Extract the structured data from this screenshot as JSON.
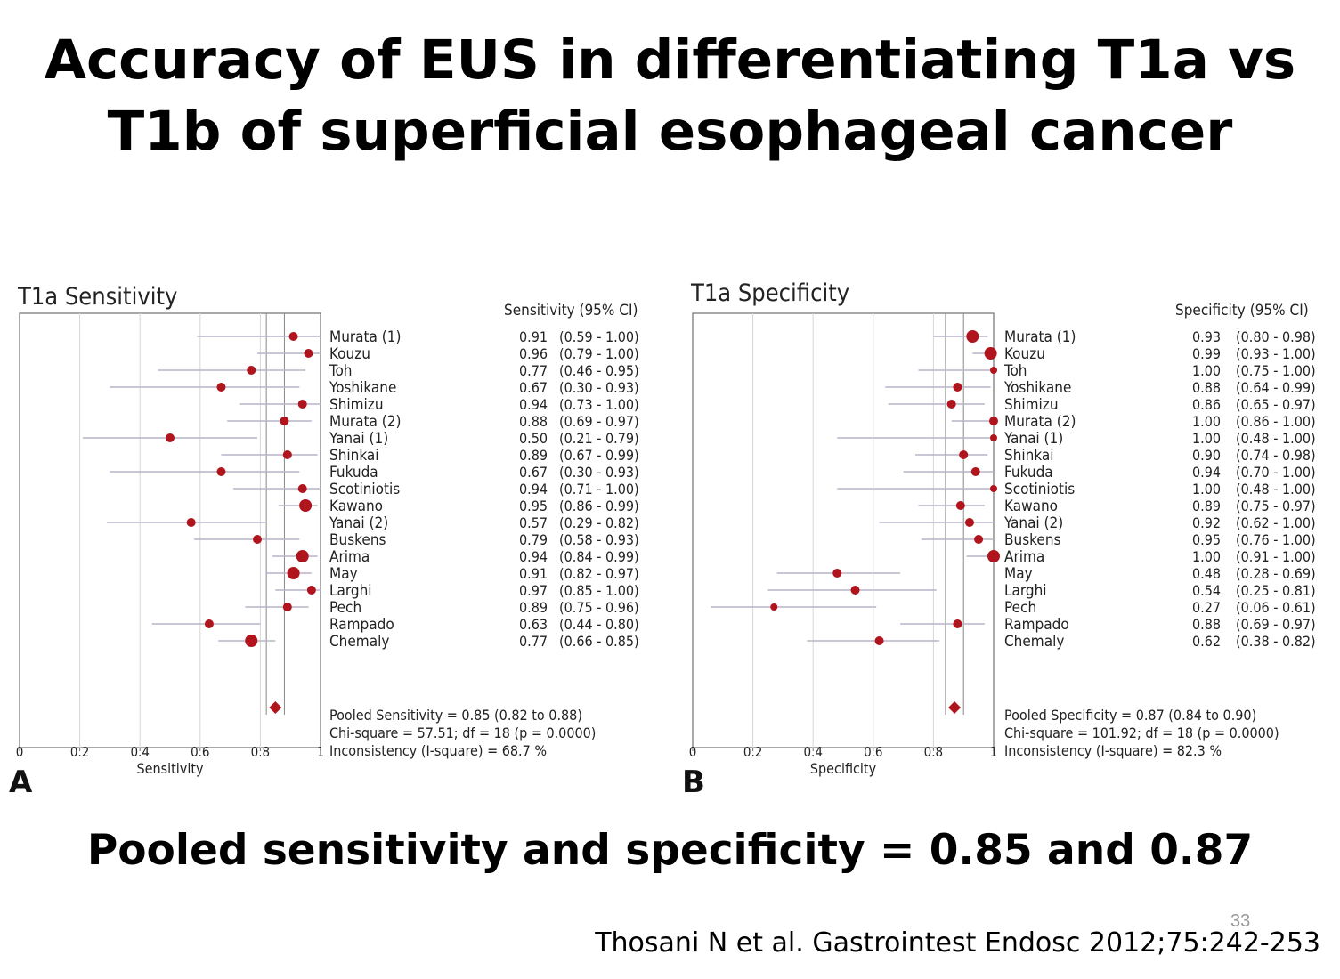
{
  "slide": {
    "title_line1": "Accuracy of EUS in differentiating T1a vs",
    "title_line2": "T1b of superficial esophageal cancer",
    "summary": "Pooled sensitivity and specificity = 0.85 and 0.87",
    "citation": "Thosani N et al. Gastrointest Endosc 2012;75:242-253",
    "page_number": "33"
  },
  "colors": {
    "point": "#b0141d",
    "ci_line": "#b8b4c8",
    "grid": "#d6d6d6",
    "frame": "#707070"
  },
  "chart_data": [
    {
      "type": "forest",
      "panel_label": "A",
      "title": "T1a Sensitivity",
      "column_header": "Sensitivity (95% CI)",
      "xlabel": "Sensitivity",
      "xlim": [
        0,
        1
      ],
      "x_ticks": [
        "0",
        "0.2",
        "0.4",
        "0.6",
        "0.8",
        "1"
      ],
      "studies": [
        {
          "name": "Murata (1)",
          "estimate": 0.91,
          "lower": 0.59,
          "upper": 1.0,
          "estimate_text": "0.91",
          "ci_text": "(0.59 - 1.00)",
          "weight": 2
        },
        {
          "name": "Kouzu",
          "estimate": 0.96,
          "lower": 0.79,
          "upper": 1.0,
          "estimate_text": "0.96",
          "ci_text": "(0.79 - 1.00)",
          "weight": 2
        },
        {
          "name": "Toh",
          "estimate": 0.77,
          "lower": 0.46,
          "upper": 0.95,
          "estimate_text": "0.77",
          "ci_text": "(0.46 - 0.95)",
          "weight": 2
        },
        {
          "name": "Yoshikane",
          "estimate": 0.67,
          "lower": 0.3,
          "upper": 0.93,
          "estimate_text": "0.67",
          "ci_text": "(0.30 - 0.93)",
          "weight": 2
        },
        {
          "name": "Shimizu",
          "estimate": 0.94,
          "lower": 0.73,
          "upper": 1.0,
          "estimate_text": "0.94",
          "ci_text": "(0.73 - 1.00)",
          "weight": 2
        },
        {
          "name": "Murata (2)",
          "estimate": 0.88,
          "lower": 0.69,
          "upper": 0.97,
          "estimate_text": "0.88",
          "ci_text": "(0.69 - 0.97)",
          "weight": 2
        },
        {
          "name": "Yanai (1)",
          "estimate": 0.5,
          "lower": 0.21,
          "upper": 0.79,
          "estimate_text": "0.50",
          "ci_text": "(0.21 - 0.79)",
          "weight": 2
        },
        {
          "name": "Shinkai",
          "estimate": 0.89,
          "lower": 0.67,
          "upper": 0.99,
          "estimate_text": "0.89",
          "ci_text": "(0.67 - 0.99)",
          "weight": 2
        },
        {
          "name": "Fukuda",
          "estimate": 0.67,
          "lower": 0.3,
          "upper": 0.93,
          "estimate_text": "0.67",
          "ci_text": "(0.30 - 0.93)",
          "weight": 2
        },
        {
          "name": "Scotiniotis",
          "estimate": 0.94,
          "lower": 0.71,
          "upper": 1.0,
          "estimate_text": "0.94",
          "ci_text": "(0.71 - 1.00)",
          "weight": 2
        },
        {
          "name": "Kawano",
          "estimate": 0.95,
          "lower": 0.86,
          "upper": 0.99,
          "estimate_text": "0.95",
          "ci_text": "(0.86 - 0.99)",
          "weight": 3
        },
        {
          "name": "Yanai (2)",
          "estimate": 0.57,
          "lower": 0.29,
          "upper": 0.82,
          "estimate_text": "0.57",
          "ci_text": "(0.29 - 0.82)",
          "weight": 2
        },
        {
          "name": "Buskens",
          "estimate": 0.79,
          "lower": 0.58,
          "upper": 0.93,
          "estimate_text": "0.79",
          "ci_text": "(0.58 - 0.93)",
          "weight": 2
        },
        {
          "name": "Arima",
          "estimate": 0.94,
          "lower": 0.84,
          "upper": 0.99,
          "estimate_text": "0.94",
          "ci_text": "(0.84 - 0.99)",
          "weight": 3
        },
        {
          "name": "May",
          "estimate": 0.91,
          "lower": 0.82,
          "upper": 0.97,
          "estimate_text": "0.91",
          "ci_text": "(0.82 - 0.97)",
          "weight": 3
        },
        {
          "name": "Larghi",
          "estimate": 0.97,
          "lower": 0.85,
          "upper": 1.0,
          "estimate_text": "0.97",
          "ci_text": "(0.85 - 1.00)",
          "weight": 2
        },
        {
          "name": "Pech",
          "estimate": 0.89,
          "lower": 0.75,
          "upper": 0.96,
          "estimate_text": "0.89",
          "ci_text": "(0.75 - 0.96)",
          "weight": 2
        },
        {
          "name": "Rampado",
          "estimate": 0.63,
          "lower": 0.44,
          "upper": 0.8,
          "estimate_text": "0.63",
          "ci_text": "(0.44 - 0.80)",
          "weight": 2
        },
        {
          "name": "Chemaly",
          "estimate": 0.77,
          "lower": 0.66,
          "upper": 0.85,
          "estimate_text": "0.77",
          "ci_text": "(0.66 - 0.85)",
          "weight": 3
        }
      ],
      "pooled": {
        "estimate": 0.85,
        "lower": 0.82,
        "upper": 0.88
      },
      "summary_lines": [
        "Pooled Sensitivity = 0.85 (0.82 to 0.88)",
        "Chi-square = 57.51; df = 18 (p = 0.0000)",
        "Inconsistency (I-square) = 68.7 %"
      ]
    },
    {
      "type": "forest",
      "panel_label": "B",
      "title": "T1a Specificity",
      "column_header": "Specificity (95% CI)",
      "xlabel": "Specificity",
      "xlim": [
        0,
        1
      ],
      "x_ticks": [
        "0",
        "0.2",
        "0.4",
        "0.6",
        "0.8",
        "1"
      ],
      "studies": [
        {
          "name": "Murata (1)",
          "estimate": 0.93,
          "lower": 0.8,
          "upper": 0.98,
          "estimate_text": "0.93",
          "ci_text": "(0.80 - 0.98)",
          "weight": 3
        },
        {
          "name": "Kouzu",
          "estimate": 0.99,
          "lower": 0.93,
          "upper": 1.0,
          "estimate_text": "0.99",
          "ci_text": "(0.93 - 1.00)",
          "weight": 3
        },
        {
          "name": "Toh",
          "estimate": 1.0,
          "lower": 0.75,
          "upper": 1.0,
          "estimate_text": "1.00",
          "ci_text": "(0.75 - 1.00)",
          "weight": 1
        },
        {
          "name": "Yoshikane",
          "estimate": 0.88,
          "lower": 0.64,
          "upper": 0.99,
          "estimate_text": "0.88",
          "ci_text": "(0.64 - 0.99)",
          "weight": 2
        },
        {
          "name": "Shimizu",
          "estimate": 0.86,
          "lower": 0.65,
          "upper": 0.97,
          "estimate_text": "0.86",
          "ci_text": "(0.65 - 0.97)",
          "weight": 2
        },
        {
          "name": "Murata (2)",
          "estimate": 1.0,
          "lower": 0.86,
          "upper": 1.0,
          "estimate_text": "1.00",
          "ci_text": "(0.86 - 1.00)",
          "weight": 2
        },
        {
          "name": "Yanai (1)",
          "estimate": 1.0,
          "lower": 0.48,
          "upper": 1.0,
          "estimate_text": "1.00",
          "ci_text": "(0.48 - 1.00)",
          "weight": 1
        },
        {
          "name": "Shinkai",
          "estimate": 0.9,
          "lower": 0.74,
          "upper": 0.98,
          "estimate_text": "0.90",
          "ci_text": "(0.74 - 0.98)",
          "weight": 2
        },
        {
          "name": "Fukuda",
          "estimate": 0.94,
          "lower": 0.7,
          "upper": 1.0,
          "estimate_text": "0.94",
          "ci_text": "(0.70 - 1.00)",
          "weight": 2
        },
        {
          "name": "Scotiniotis",
          "estimate": 1.0,
          "lower": 0.48,
          "upper": 1.0,
          "estimate_text": "1.00",
          "ci_text": "(0.48 - 1.00)",
          "weight": 1
        },
        {
          "name": "Kawano",
          "estimate": 0.89,
          "lower": 0.75,
          "upper": 0.97,
          "estimate_text": "0.89",
          "ci_text": "(0.75 - 0.97)",
          "weight": 2
        },
        {
          "name": "Yanai (2)",
          "estimate": 0.92,
          "lower": 0.62,
          "upper": 1.0,
          "estimate_text": "0.92",
          "ci_text": "(0.62 - 1.00)",
          "weight": 2
        },
        {
          "name": "Buskens",
          "estimate": 0.95,
          "lower": 0.76,
          "upper": 1.0,
          "estimate_text": "0.95",
          "ci_text": "(0.76 - 1.00)",
          "weight": 2
        },
        {
          "name": "Arima",
          "estimate": 1.0,
          "lower": 0.91,
          "upper": 1.0,
          "estimate_text": "1.00",
          "ci_text": "(0.91 - 1.00)",
          "weight": 3
        },
        {
          "name": "May",
          "estimate": 0.48,
          "lower": 0.28,
          "upper": 0.69,
          "estimate_text": "0.48",
          "ci_text": "(0.28 - 0.69)",
          "weight": 2
        },
        {
          "name": "Larghi",
          "estimate": 0.54,
          "lower": 0.25,
          "upper": 0.81,
          "estimate_text": "0.54",
          "ci_text": "(0.25 - 0.81)",
          "weight": 2
        },
        {
          "name": "Pech",
          "estimate": 0.27,
          "lower": 0.06,
          "upper": 0.61,
          "estimate_text": "0.27",
          "ci_text": "(0.06 - 0.61)",
          "weight": 1
        },
        {
          "name": "Rampado",
          "estimate": 0.88,
          "lower": 0.69,
          "upper": 0.97,
          "estimate_text": "0.88",
          "ci_text": "(0.69 - 0.97)",
          "weight": 2
        },
        {
          "name": "Chemaly",
          "estimate": 0.62,
          "lower": 0.38,
          "upper": 0.82,
          "estimate_text": "0.62",
          "ci_text": "(0.38 - 0.82)",
          "weight": 2
        }
      ],
      "pooled": {
        "estimate": 0.87,
        "lower": 0.84,
        "upper": 0.9
      },
      "summary_lines": [
        "Pooled Specificity = 0.87 (0.84 to 0.90)",
        "Chi-square = 101.92; df = 18 (p = 0.0000)",
        "Inconsistency (I-square) = 82.3 %"
      ]
    }
  ]
}
